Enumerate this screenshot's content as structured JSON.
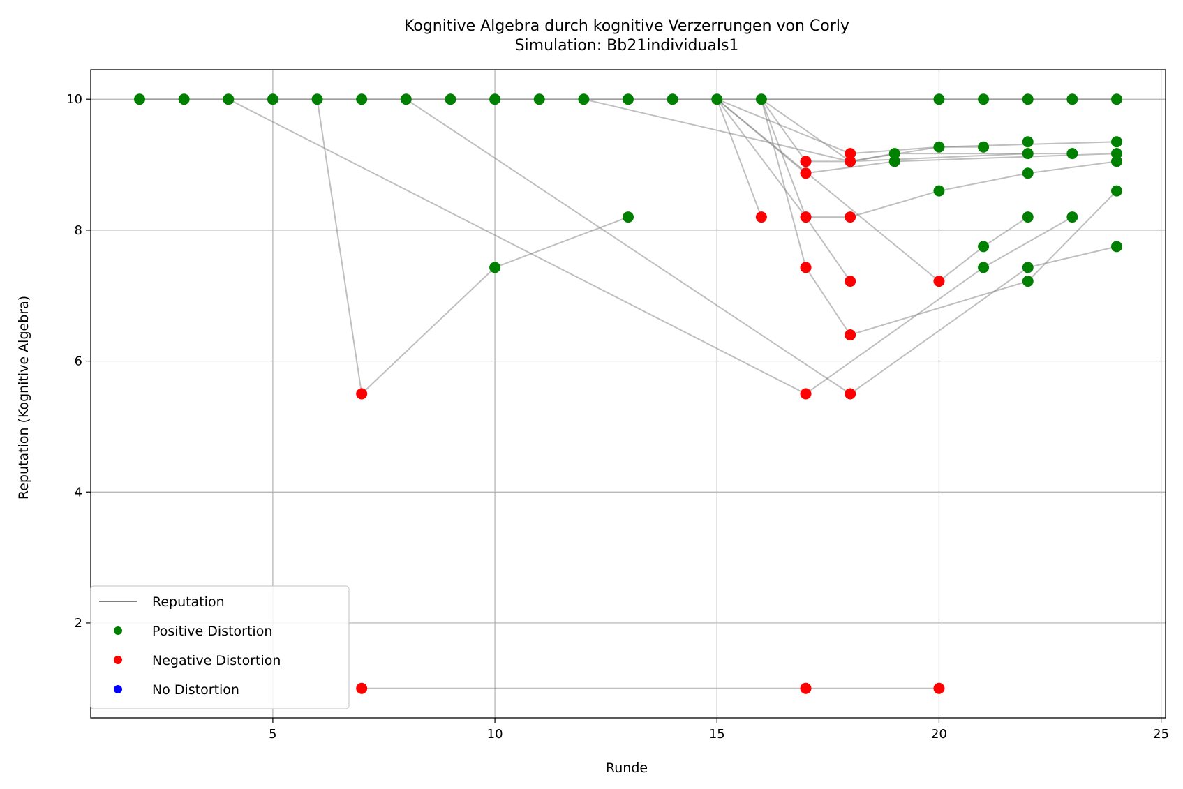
{
  "chart_data": {
    "type": "scatter",
    "title": "Kognitive Algebra durch kognitive Verzerrungen von Corly",
    "subtitle": "Simulation: Bb21individuals1",
    "xlabel": "Runde",
    "ylabel": "Reputation (Kognitive Algebra)",
    "xlim": [
      0.9,
      25.1
    ],
    "ylim": [
      0.55,
      10.45
    ],
    "xticks": [
      5,
      10,
      15,
      20,
      25
    ],
    "yticks": [
      2,
      4,
      6,
      8,
      10
    ],
    "grid": true,
    "legend_position": "bottom-left",
    "colors": {
      "reputation_line": "#808080",
      "positive": "#008000",
      "negative": "#ff0000",
      "none": "#0000ff"
    },
    "legend": [
      {
        "label": "Reputation",
        "kind": "line",
        "color": "#808080"
      },
      {
        "label": "Positive Distortion",
        "kind": "dot",
        "color": "#008000"
      },
      {
        "label": "Negative Distortion",
        "kind": "dot",
        "color": "#ff0000"
      },
      {
        "label": "No Distortion",
        "kind": "dot",
        "color": "#0000ff"
      }
    ],
    "series": [
      {
        "name": "Reputation",
        "points": [
          [
            2,
            10
          ],
          [
            3,
            10
          ],
          [
            4,
            10
          ],
          [
            5,
            10
          ],
          [
            6,
            10
          ],
          [
            7,
            10
          ],
          [
            8,
            10
          ],
          [
            9,
            10
          ],
          [
            10,
            10
          ],
          [
            11,
            10
          ],
          [
            12,
            10
          ],
          [
            13,
            10
          ],
          [
            14,
            10
          ],
          [
            15,
            10
          ],
          [
            16,
            10
          ],
          [
            20,
            10
          ],
          [
            21,
            10
          ],
          [
            22,
            10
          ],
          [
            23,
            10
          ],
          [
            24,
            10
          ]
        ]
      },
      {
        "name": "Reputation",
        "points": [
          [
            7,
            1
          ],
          [
            17,
            1
          ],
          [
            20,
            1
          ]
        ]
      },
      {
        "name": "Reputation",
        "points": [
          [
            6,
            10
          ],
          [
            7,
            5.5
          ],
          [
            10,
            7.43
          ],
          [
            13,
            8.2
          ]
        ]
      },
      {
        "name": "Reputation",
        "points": [
          [
            4,
            10
          ],
          [
            17,
            5.5
          ],
          [
            21,
            7.43
          ],
          [
            23,
            8.2
          ]
        ]
      },
      {
        "name": "Reputation",
        "points": [
          [
            8,
            10
          ],
          [
            18,
            5.5
          ],
          [
            22,
            7.43
          ],
          [
            24,
            7.75
          ]
        ]
      },
      {
        "name": "Reputation",
        "points": [
          [
            12,
            10
          ],
          [
            18,
            9.05
          ],
          [
            20,
            9.27
          ],
          [
            24,
            9.35
          ]
        ]
      },
      {
        "name": "Reputation",
        "points": [
          [
            15,
            10
          ],
          [
            16,
            8.2
          ]
        ]
      },
      {
        "name": "Reputation",
        "points": [
          [
            15,
            10
          ],
          [
            17,
            8.2
          ],
          [
            18,
            7.22
          ]
        ]
      },
      {
        "name": "Reputation",
        "points": [
          [
            15,
            10
          ],
          [
            18,
            9.17
          ],
          [
            20,
            9.27
          ],
          [
            21,
            9.27
          ]
        ]
      },
      {
        "name": "Reputation",
        "points": [
          [
            15,
            10
          ],
          [
            17,
            8.87
          ],
          [
            19,
            9.05
          ],
          [
            24,
            9.17
          ]
        ]
      },
      {
        "name": "Reputation",
        "points": [
          [
            16,
            10
          ],
          [
            17,
            9.05
          ],
          [
            18,
            9.05
          ],
          [
            22,
            9.17
          ]
        ]
      },
      {
        "name": "Reputation",
        "points": [
          [
            16,
            10
          ],
          [
            17,
            8.2
          ],
          [
            18,
            8.2
          ],
          [
            20,
            8.6
          ],
          [
            22,
            8.87
          ],
          [
            24,
            9.05
          ]
        ]
      },
      {
        "name": "Reputation",
        "points": [
          [
            16,
            10
          ],
          [
            17,
            7.43
          ],
          [
            18,
            6.4
          ],
          [
            22,
            7.22
          ],
          [
            24,
            8.6
          ]
        ]
      },
      {
        "name": "Reputation",
        "points": [
          [
            16,
            10
          ],
          [
            18,
            9.05
          ],
          [
            19,
            9.17
          ],
          [
            23,
            9.17
          ]
        ]
      },
      {
        "name": "Reputation",
        "points": [
          [
            15,
            10
          ],
          [
            20,
            7.22
          ],
          [
            21,
            7.75
          ],
          [
            22,
            8.2
          ]
        ]
      }
    ],
    "positive_points": [
      [
        2,
        10
      ],
      [
        3,
        10
      ],
      [
        4,
        10
      ],
      [
        5,
        10
      ],
      [
        6,
        10
      ],
      [
        7,
        10
      ],
      [
        8,
        10
      ],
      [
        9,
        10
      ],
      [
        10,
        10
      ],
      [
        11,
        10
      ],
      [
        12,
        10
      ],
      [
        13,
        10
      ],
      [
        14,
        10
      ],
      [
        15,
        10
      ],
      [
        16,
        10
      ],
      [
        20,
        10
      ],
      [
        21,
        10
      ],
      [
        22,
        10
      ],
      [
        23,
        10
      ],
      [
        24,
        10
      ],
      [
        10,
        7.43
      ],
      [
        13,
        8.2
      ],
      [
        19,
        9.17
      ],
      [
        19,
        9.05
      ],
      [
        20,
        9.27
      ],
      [
        20,
        8.6
      ],
      [
        21,
        9.27
      ],
      [
        21,
        7.75
      ],
      [
        21,
        7.43
      ],
      [
        22,
        9.35
      ],
      [
        22,
        9.17
      ],
      [
        22,
        8.87
      ],
      [
        22,
        8.2
      ],
      [
        22,
        7.43
      ],
      [
        22,
        7.22
      ],
      [
        23,
        9.17
      ],
      [
        23,
        8.2
      ],
      [
        24,
        9.35
      ],
      [
        24,
        9.17
      ],
      [
        24,
        9.05
      ],
      [
        24,
        8.6
      ],
      [
        24,
        7.75
      ]
    ],
    "negative_points": [
      [
        7,
        5.5
      ],
      [
        7,
        1
      ],
      [
        16,
        8.2
      ],
      [
        17,
        9.05
      ],
      [
        17,
        8.87
      ],
      [
        17,
        8.2
      ],
      [
        17,
        7.43
      ],
      [
        17,
        5.5
      ],
      [
        17,
        1
      ],
      [
        18,
        9.17
      ],
      [
        18,
        9.05
      ],
      [
        18,
        8.2
      ],
      [
        18,
        7.22
      ],
      [
        18,
        6.4
      ],
      [
        18,
        5.5
      ],
      [
        20,
        7.22
      ],
      [
        20,
        1
      ]
    ],
    "none_points": []
  }
}
